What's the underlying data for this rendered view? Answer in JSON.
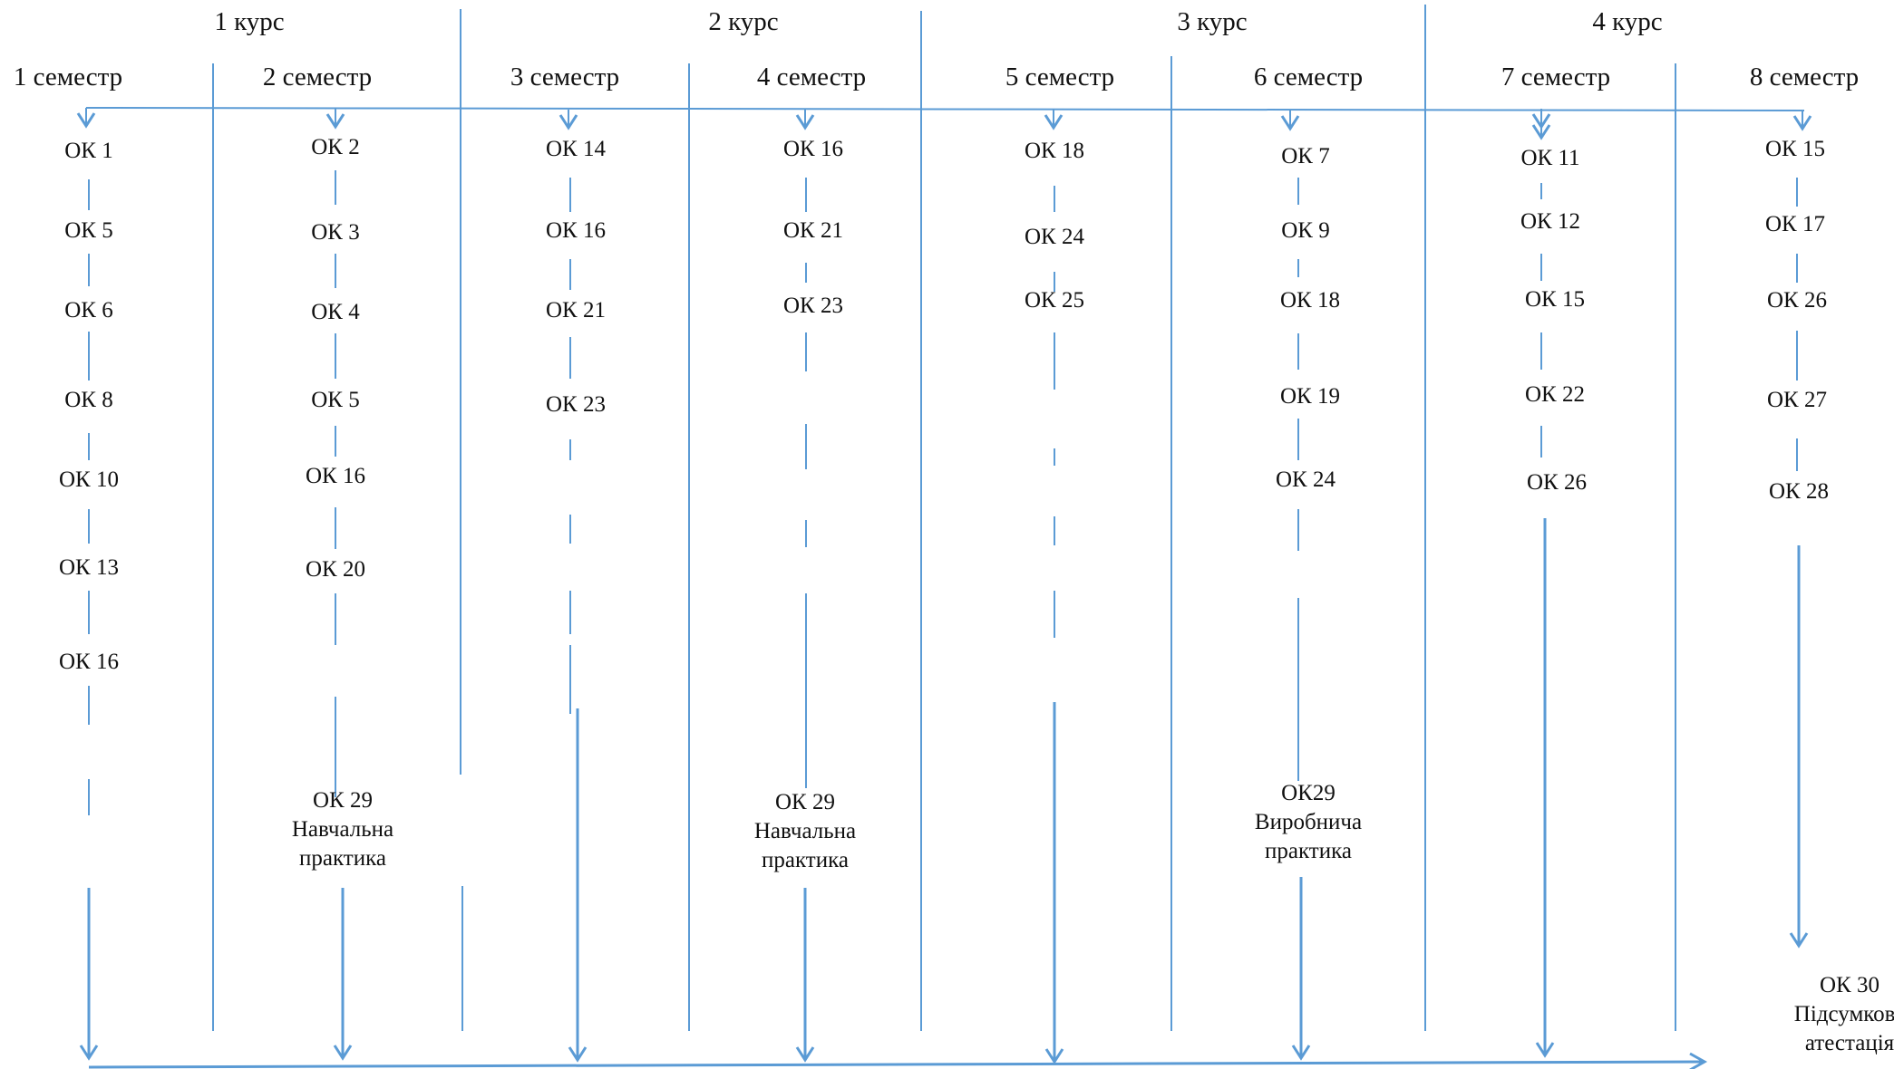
{
  "courses": [
    "1 курс",
    "2 курс",
    "3 курс",
    "4 курс"
  ],
  "semesters": [
    "1 семестр",
    "2 семестр",
    "3 семестр",
    "4 семестр",
    "5 семестр",
    "6 семестр",
    "7 семестр",
    "8 семестр"
  ],
  "columns": [
    {
      "items": [
        "ОК 1",
        "ОК 5",
        "ОК 6",
        "ОК 8",
        "ОК 10",
        "ОК 13",
        "ОК 16"
      ]
    },
    {
      "items": [
        "ОК 2",
        "ОК 3",
        "ОК 4",
        "ОК 5",
        "ОК 16",
        "ОК 20"
      ],
      "final": [
        "ОК 29",
        "Навчальна",
        "практика"
      ]
    },
    {
      "items": [
        "ОК 14",
        "ОК 16",
        "ОК 21",
        "ОК 23"
      ]
    },
    {
      "items": [
        "ОК 16",
        "ОК 21",
        "ОК 23"
      ],
      "final": [
        "ОК 29",
        "Навчальна",
        "практика"
      ]
    },
    {
      "items": [
        "ОК 18",
        "ОК 24",
        "ОК 25"
      ]
    },
    {
      "items": [
        "ОК 7",
        "ОК 9",
        "ОК 18",
        "ОК 19",
        "ОК 24"
      ],
      "final": [
        "ОК29",
        "Виробнича",
        "практика"
      ]
    },
    {
      "items": [
        "ОК 11",
        "ОК 12",
        "ОК 15",
        "ОК 22",
        "ОК 26"
      ]
    },
    {
      "items": [
        "ОК 15",
        "ОК 17",
        "ОК 26",
        "ОК 27",
        "ОК 28"
      ],
      "final": [
        "ОК 30",
        "Підсумкова",
        "атестація"
      ]
    }
  ],
  "colors": {
    "arrow": "#5b9bd5",
    "text": "#111111"
  }
}
